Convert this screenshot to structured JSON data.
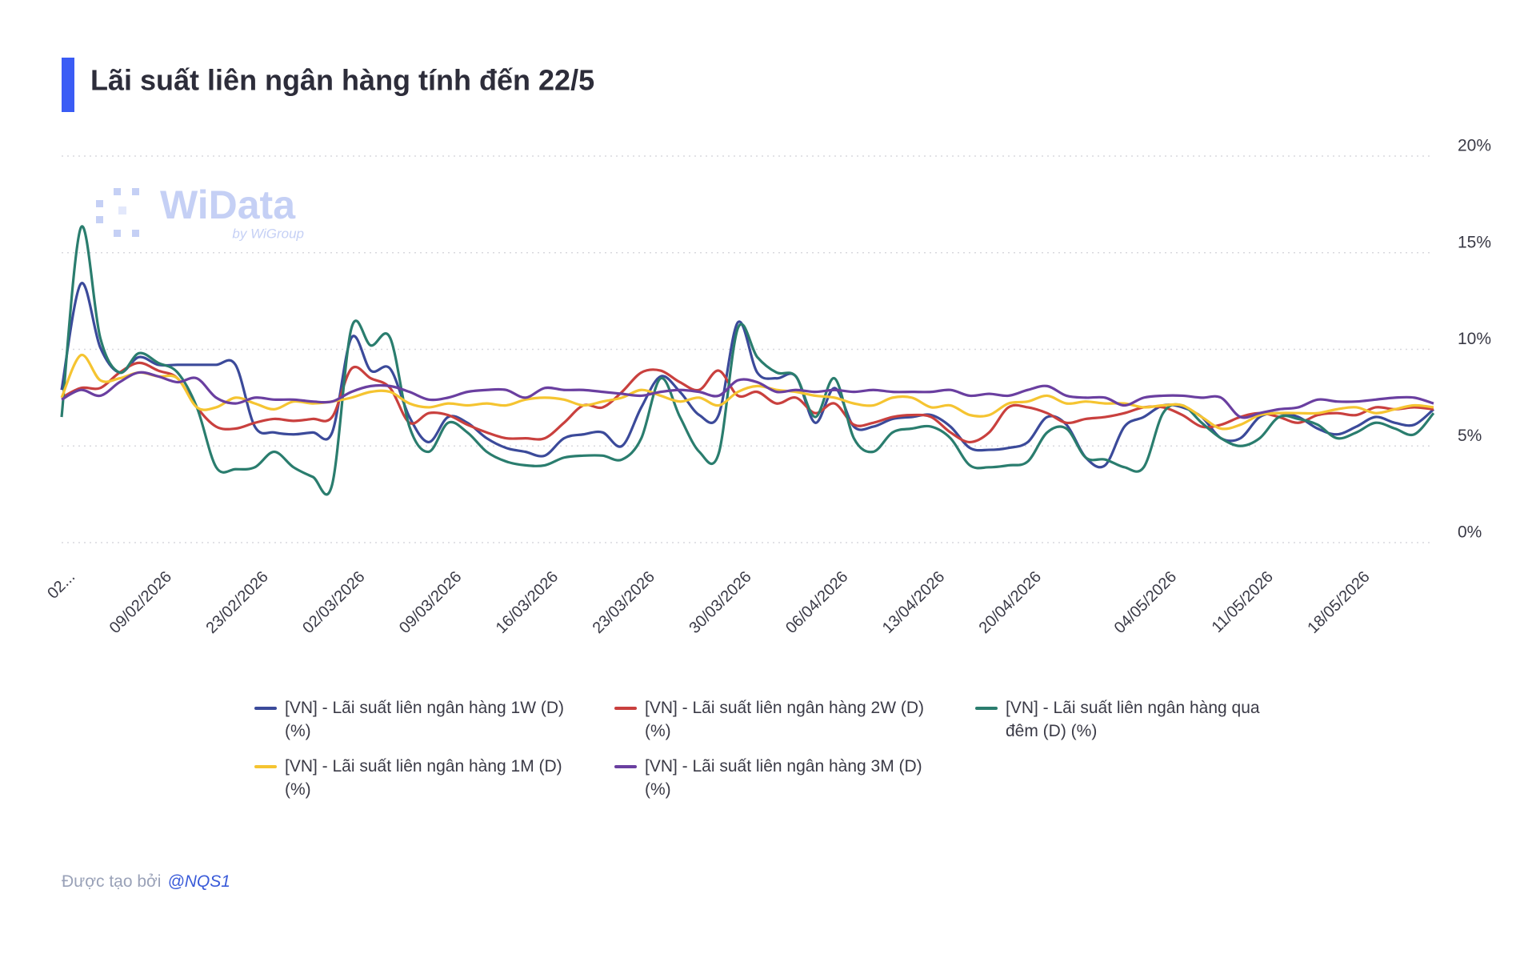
{
  "chart_data": {
    "type": "line",
    "title": "Lãi suất liên ngân hàng tính đến 22/5",
    "watermark": {
      "brand": "WiData",
      "by": "by WiGroup"
    },
    "categories": [
      "02...",
      null,
      null,
      null,
      null,
      "09/02/2026",
      null,
      null,
      null,
      null,
      "23/02/2026",
      null,
      null,
      null,
      null,
      "02/03/2026",
      null,
      null,
      null,
      null,
      "09/03/2026",
      null,
      null,
      null,
      null,
      "16/03/2026",
      null,
      null,
      null,
      null,
      "23/03/2026",
      null,
      null,
      null,
      null,
      "30/03/2026",
      null,
      null,
      null,
      null,
      "06/04/2026",
      null,
      null,
      null,
      null,
      "13/04/2026",
      null,
      null,
      null,
      null,
      "20/04/2026",
      null,
      null,
      null,
      null,
      null,
      null,
      "04/05/2026",
      null,
      null,
      null,
      null,
      "11/05/2026",
      null,
      null,
      null,
      null,
      "18/05/2026",
      null,
      null,
      null,
      null
    ],
    "ylim": [
      0,
      20
    ],
    "yticks": [
      {
        "value": 0,
        "label": "0%"
      },
      {
        "value": 5,
        "label": "5%"
      },
      {
        "value": 10,
        "label": "10%"
      },
      {
        "value": 15,
        "label": "15%"
      },
      {
        "value": 20,
        "label": "20%"
      }
    ],
    "grid": true,
    "series": [
      {
        "name": "[VN] - Lãi suất liên ngân hàng 1W (D) (%)",
        "color": "#3b4a9a",
        "values": [
          7.9,
          13.4,
          10.1,
          8.8,
          9.6,
          9.2,
          9.2,
          9.2,
          9.2,
          9.2,
          6.0,
          5.7,
          5.6,
          5.7,
          5.7,
          10.6,
          8.9,
          9.0,
          6.5,
          5.2,
          6.5,
          6.2,
          5.4,
          4.9,
          4.7,
          4.5,
          5.4,
          5.6,
          5.7,
          5.0,
          7.0,
          8.6,
          7.8,
          6.6,
          6.6,
          11.4,
          8.8,
          8.5,
          8.6,
          6.2,
          8.0,
          6.0,
          6.0,
          6.4,
          6.5,
          6.6,
          6.0,
          4.9,
          4.8,
          4.9,
          5.2,
          6.5,
          6.1,
          4.4,
          4.0,
          6.0,
          6.5,
          7.1,
          7.0,
          6.5,
          5.4,
          5.4,
          6.5,
          6.7,
          6.5,
          5.9,
          5.6,
          6.0,
          6.5,
          6.2,
          6.1,
          6.9
        ]
      },
      {
        "name": "[VN] - Lãi suất liên ngân hàng 2W (D) (%)",
        "color": "#c9403e",
        "values": [
          7.5,
          8.0,
          8.0,
          8.8,
          9.3,
          8.9,
          8.5,
          7.0,
          6.0,
          5.9,
          6.2,
          6.4,
          6.3,
          6.4,
          6.5,
          9.0,
          8.5,
          8.0,
          6.2,
          6.7,
          6.6,
          6.1,
          5.7,
          5.4,
          5.4,
          5.4,
          6.2,
          7.1,
          7.0,
          7.8,
          8.8,
          8.9,
          8.3,
          7.9,
          8.9,
          7.6,
          7.8,
          7.2,
          7.5,
          6.7,
          7.2,
          6.1,
          6.2,
          6.5,
          6.6,
          6.5,
          5.7,
          5.2,
          5.7,
          7.0,
          7.0,
          6.7,
          6.2,
          6.4,
          6.5,
          6.7,
          7.0,
          7.0,
          6.6,
          6.0,
          6.1,
          6.5,
          6.7,
          6.5,
          6.2,
          6.6,
          6.7,
          6.6,
          7.0,
          6.9,
          7.0,
          6.9
        ]
      },
      {
        "name": "[VN] - Lãi suất liên ngân hàng qua đêm (D) (%)",
        "color": "#2a7d6e",
        "values": [
          6.5,
          16.3,
          10.6,
          8.8,
          9.8,
          9.3,
          8.8,
          7.0,
          3.9,
          3.8,
          3.9,
          4.7,
          3.9,
          3.4,
          3.0,
          11.1,
          10.2,
          10.6,
          6.0,
          4.7,
          6.2,
          5.7,
          4.7,
          4.2,
          4.0,
          4.0,
          4.4,
          4.5,
          4.5,
          4.3,
          5.4,
          8.5,
          6.5,
          4.7,
          4.6,
          11.1,
          9.6,
          8.8,
          8.6,
          6.5,
          8.5,
          5.4,
          4.7,
          5.7,
          5.9,
          6.0,
          5.4,
          4.0,
          3.9,
          4.0,
          4.2,
          5.7,
          5.9,
          4.4,
          4.3,
          3.9,
          3.9,
          6.7,
          7.1,
          6.2,
          5.4,
          5.0,
          5.4,
          6.5,
          6.4,
          6.1,
          5.4,
          5.7,
          6.2,
          5.9,
          5.6,
          6.7
        ]
      },
      {
        "name": "[VN] - Lãi suất liên ngân hàng 1M (D) (%)",
        "color": "#f5c431",
        "values": [
          7.5,
          9.7,
          8.4,
          8.5,
          8.8,
          8.6,
          8.5,
          7.0,
          7.0,
          7.5,
          7.2,
          6.9,
          7.3,
          7.2,
          7.3,
          7.5,
          7.8,
          7.8,
          7.2,
          7.0,
          7.2,
          7.1,
          7.2,
          7.1,
          7.4,
          7.5,
          7.4,
          7.1,
          7.3,
          7.5,
          7.9,
          7.6,
          7.3,
          7.5,
          7.1,
          7.8,
          8.1,
          7.9,
          7.8,
          7.6,
          7.5,
          7.2,
          7.1,
          7.5,
          7.5,
          7.0,
          7.1,
          6.6,
          6.6,
          7.2,
          7.3,
          7.6,
          7.2,
          7.3,
          7.2,
          7.2,
          7.0,
          7.1,
          7.1,
          6.5,
          5.9,
          6.1,
          6.6,
          6.7,
          6.7,
          6.7,
          6.9,
          7.0,
          6.7,
          6.9,
          7.1,
          7.0
        ]
      },
      {
        "name": "[VN] - Lãi suất liên ngân hàng 3M (D) (%)",
        "color": "#6a3fa0",
        "values": [
          7.4,
          7.9,
          7.6,
          8.3,
          8.8,
          8.6,
          8.3,
          8.5,
          7.5,
          7.2,
          7.5,
          7.4,
          7.4,
          7.3,
          7.3,
          7.8,
          8.1,
          8.1,
          7.8,
          7.4,
          7.5,
          7.8,
          7.9,
          7.9,
          7.5,
          8.0,
          7.9,
          7.9,
          7.8,
          7.7,
          7.6,
          7.8,
          7.9,
          7.8,
          7.6,
          8.4,
          8.3,
          7.8,
          7.9,
          7.8,
          7.9,
          7.8,
          7.9,
          7.8,
          7.8,
          7.8,
          7.9,
          7.6,
          7.7,
          7.6,
          7.9,
          8.1,
          7.6,
          7.5,
          7.5,
          7.1,
          7.5,
          7.6,
          7.6,
          7.5,
          7.5,
          6.5,
          6.7,
          6.9,
          7.0,
          7.4,
          7.3,
          7.3,
          7.4,
          7.5,
          7.5,
          7.2
        ]
      }
    ]
  },
  "footer": {
    "label": "Được tạo bởi",
    "author": "@NQS1"
  }
}
